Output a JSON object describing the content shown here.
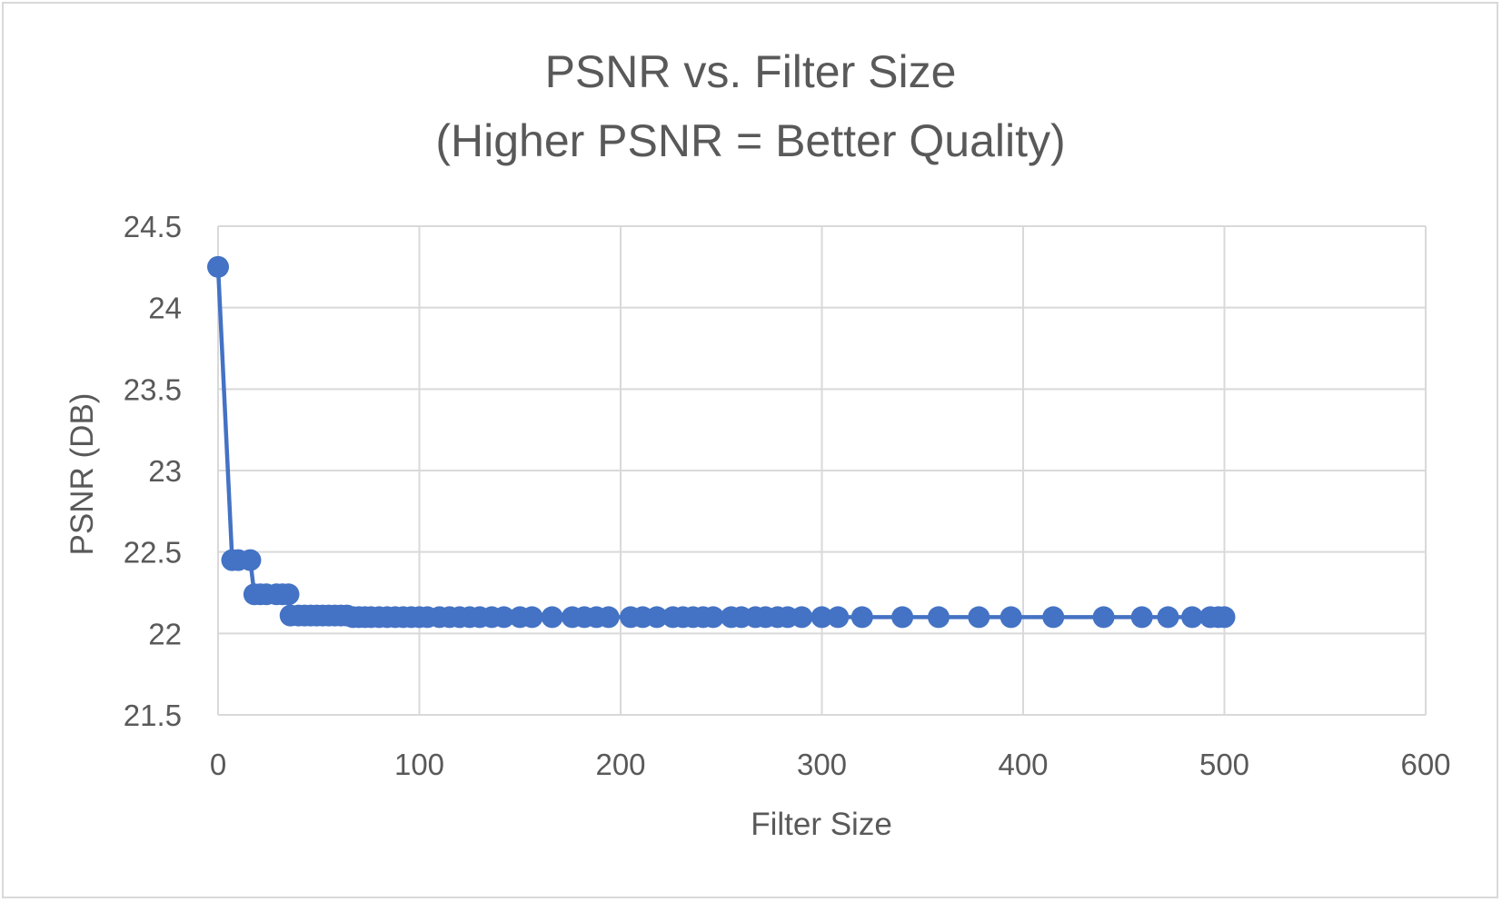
{
  "chart_data": {
    "type": "scatter",
    "title": "PSNR vs. Filter Size",
    "subtitle": "(Higher PSNR = Better Quality)",
    "xlabel": "Filter Size",
    "ylabel": "PSNR (DB)",
    "xlim": [
      0,
      600
    ],
    "ylim": [
      21.5,
      24.5
    ],
    "x_ticks": [
      0,
      100,
      200,
      300,
      400,
      500,
      600
    ],
    "y_ticks": [
      21.5,
      22,
      22.5,
      23,
      23.5,
      24,
      24.5
    ],
    "x_tick_labels": [
      "0",
      "100",
      "200",
      "300",
      "400",
      "500",
      "600"
    ],
    "y_tick_labels": [
      "21.5",
      "22",
      "22.5",
      "23",
      "23.5",
      "24",
      "24.5"
    ],
    "grid": true,
    "legend": "none",
    "series_color": "#4472c4",
    "series": [
      {
        "points": [
          [
            0,
            24.25
          ],
          [
            7,
            22.45
          ],
          [
            10,
            22.45
          ],
          [
            16,
            22.45
          ],
          [
            18,
            22.24
          ],
          [
            21,
            22.24
          ],
          [
            24,
            22.24
          ],
          [
            29,
            22.24
          ],
          [
            32,
            22.24
          ],
          [
            35,
            22.24
          ],
          [
            36,
            22.11
          ],
          [
            40,
            22.11
          ],
          [
            43,
            22.11
          ],
          [
            46,
            22.11
          ],
          [
            49,
            22.11
          ],
          [
            52,
            22.11
          ],
          [
            55,
            22.11
          ],
          [
            58,
            22.11
          ],
          [
            61,
            22.11
          ],
          [
            64,
            22.11
          ],
          [
            67,
            22.1
          ],
          [
            70,
            22.1
          ],
          [
            73,
            22.1
          ],
          [
            76,
            22.1
          ],
          [
            80,
            22.1
          ],
          [
            84,
            22.1
          ],
          [
            88,
            22.1
          ],
          [
            92,
            22.1
          ],
          [
            96,
            22.1
          ],
          [
            100,
            22.1
          ],
          [
            104,
            22.1
          ],
          [
            110,
            22.1
          ],
          [
            115,
            22.1
          ],
          [
            120,
            22.1
          ],
          [
            125,
            22.1
          ],
          [
            130,
            22.1
          ],
          [
            136,
            22.1
          ],
          [
            142,
            22.1
          ],
          [
            150,
            22.1
          ],
          [
            156,
            22.1
          ],
          [
            166,
            22.1
          ],
          [
            176,
            22.1
          ],
          [
            182,
            22.1
          ],
          [
            188,
            22.1
          ],
          [
            194,
            22.1
          ],
          [
            205,
            22.1
          ],
          [
            211,
            22.1
          ],
          [
            218,
            22.1
          ],
          [
            226,
            22.1
          ],
          [
            231,
            22.1
          ],
          [
            236,
            22.1
          ],
          [
            241,
            22.1
          ],
          [
            246,
            22.1
          ],
          [
            255,
            22.1
          ],
          [
            260,
            22.1
          ],
          [
            267,
            22.1
          ],
          [
            272,
            22.1
          ],
          [
            278,
            22.1
          ],
          [
            283,
            22.1
          ],
          [
            290,
            22.1
          ],
          [
            300,
            22.1
          ],
          [
            308,
            22.1
          ],
          [
            320,
            22.1
          ],
          [
            340,
            22.1
          ],
          [
            358,
            22.1
          ],
          [
            378,
            22.1
          ],
          [
            394,
            22.1
          ],
          [
            415,
            22.1
          ],
          [
            440,
            22.1
          ],
          [
            459,
            22.1
          ],
          [
            472,
            22.1
          ],
          [
            484,
            22.1
          ],
          [
            493,
            22.1
          ],
          [
            497,
            22.1
          ],
          [
            500,
            22.1
          ]
        ]
      }
    ]
  }
}
